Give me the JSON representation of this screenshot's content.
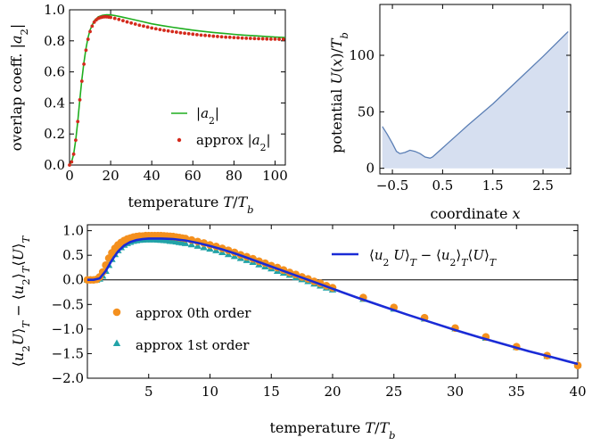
{
  "chart_data": [
    {
      "id": "overlap",
      "type": "line",
      "title": "",
      "xlabel": "temperature T/T_b",
      "ylabel": "overlap coeff. |a_2|",
      "xlim": [
        0,
        105
      ],
      "ylim": [
        0,
        1.0
      ],
      "xticks": [
        0,
        20,
        40,
        60,
        80,
        100
      ],
      "yticks": [
        0.0,
        0.2,
        0.4,
        0.6,
        0.8,
        1.0
      ],
      "legend_position": "lower-right",
      "grid": false,
      "series": [
        {
          "name": "|a_2|",
          "style": "line",
          "color": "#1fae1f",
          "x": [
            0,
            1,
            2,
            3,
            4,
            5,
            6,
            7,
            8,
            9,
            10,
            12,
            14,
            16,
            18,
            20,
            22,
            25,
            30,
            35,
            40,
            45,
            50,
            55,
            60,
            65,
            70,
            75,
            80,
            85,
            90,
            95,
            100,
            105
          ],
          "y": [
            0.0,
            0.02,
            0.07,
            0.16,
            0.28,
            0.42,
            0.55,
            0.66,
            0.75,
            0.82,
            0.87,
            0.93,
            0.955,
            0.965,
            0.968,
            0.967,
            0.963,
            0.955,
            0.94,
            0.925,
            0.91,
            0.898,
            0.888,
            0.878,
            0.869,
            0.861,
            0.854,
            0.848,
            0.842,
            0.837,
            0.833,
            0.829,
            0.825,
            0.822
          ]
        },
        {
          "name": "approx |a_2|",
          "style": "points",
          "color": "#d42a1c",
          "x": [
            0,
            1,
            2,
            3,
            4,
            5,
            6,
            7,
            8,
            9,
            10,
            11,
            12,
            13,
            14,
            15,
            16,
            17,
            18,
            19,
            20,
            22,
            24,
            26,
            28,
            30,
            32,
            34,
            36,
            38,
            40,
            42,
            44,
            46,
            48,
            50,
            52,
            54,
            56,
            58,
            60,
            62,
            64,
            66,
            68,
            70,
            72,
            74,
            76,
            78,
            80,
            82,
            84,
            86,
            88,
            90,
            92,
            94,
            96,
            98,
            100,
            102,
            104
          ],
          "y": [
            0.0,
            0.02,
            0.07,
            0.16,
            0.28,
            0.42,
            0.54,
            0.65,
            0.74,
            0.81,
            0.86,
            0.895,
            0.92,
            0.935,
            0.945,
            0.95,
            0.953,
            0.955,
            0.955,
            0.953,
            0.951,
            0.945,
            0.938,
            0.93,
            0.922,
            0.915,
            0.908,
            0.901,
            0.895,
            0.889,
            0.883,
            0.878,
            0.873,
            0.868,
            0.864,
            0.86,
            0.856,
            0.852,
            0.849,
            0.846,
            0.843,
            0.84,
            0.837,
            0.835,
            0.833,
            0.83,
            0.828,
            0.826,
            0.824,
            0.823,
            0.821,
            0.82,
            0.818,
            0.817,
            0.816,
            0.815,
            0.814,
            0.813,
            0.812,
            0.811,
            0.811,
            0.81,
            0.81
          ]
        }
      ]
    },
    {
      "id": "potential",
      "type": "area",
      "title": "",
      "xlabel": "coordinate x",
      "ylabel": "potential U(x)/T_b",
      "xlim": [
        -0.75,
        3.05
      ],
      "ylim": [
        -5,
        145
      ],
      "xticks": [
        -0.5,
        0.5,
        1.5,
        2.5
      ],
      "xtick_labels": [
        "−0.5",
        "0.5",
        "1.5",
        "2.5"
      ],
      "yticks": [
        0,
        50,
        100
      ],
      "grid": false,
      "series": [
        {
          "name": "",
          "color": "#5b7fb5",
          "fill": "#d6dff0",
          "x": [
            -0.7,
            -0.6,
            -0.5,
            -0.42,
            -0.35,
            -0.25,
            -0.15,
            -0.05,
            0.05,
            0.15,
            0.25,
            0.3,
            0.35,
            0.45,
            0.6,
            0.8,
            1.0,
            1.5,
            2.0,
            2.5,
            3.0
          ],
          "y": [
            37,
            30,
            22,
            15,
            13,
            14,
            16,
            15,
            13,
            10,
            9,
            10,
            12,
            16,
            22,
            30,
            38,
            57,
            78,
            99,
            121
          ]
        }
      ]
    },
    {
      "id": "correlation",
      "type": "line",
      "title": "",
      "xlabel": "temperature T/T_b",
      "ylabel": "⟨u_2 U⟩_T − ⟨u_2⟩_T⟨U⟩_T",
      "xlim": [
        0,
        40
      ],
      "ylim": [
        -2.0,
        1.1
      ],
      "xticks": [
        5,
        10,
        15,
        20,
        25,
        30,
        35,
        40
      ],
      "yticks": [
        1.0,
        0.5,
        0.0,
        -0.5,
        -1.0,
        -1.5,
        -2.0
      ],
      "ytick_labels": [
        "1.0",
        "0.5",
        "0.0",
        "−0.5",
        "−1.0",
        "−1.5",
        "−2.0"
      ],
      "grid": false,
      "legend_position": "top-right and left",
      "series": [
        {
          "name": "⟨u_2 U⟩_T − ⟨u_2⟩_T⟨U⟩_T",
          "style": "line",
          "color": "#1a2bd6",
          "x": [
            0.0,
            0.5,
            1.0,
            1.5,
            2.0,
            2.5,
            3.0,
            3.5,
            4.0,
            4.5,
            5.0,
            5.5,
            6.0,
            6.5,
            7.0,
            8.0,
            9.0,
            10.0,
            11.0,
            12.0,
            13.0,
            14.0,
            15.0,
            16.0,
            17.0,
            18.0,
            19.0,
            20.0,
            22.0,
            24.0,
            26.0,
            28.0,
            30.0,
            32.0,
            34.0,
            36.0,
            38.0,
            40.0
          ],
          "y": [
            0.0,
            0.0,
            0.03,
            0.18,
            0.4,
            0.58,
            0.7,
            0.77,
            0.81,
            0.83,
            0.84,
            0.84,
            0.84,
            0.835,
            0.83,
            0.8,
            0.75,
            0.69,
            0.62,
            0.54,
            0.45,
            0.36,
            0.27,
            0.18,
            0.09,
            0.0,
            -0.09,
            -0.18,
            -0.36,
            -0.53,
            -0.7,
            -0.86,
            -1.02,
            -1.17,
            -1.31,
            -1.45,
            -1.58,
            -1.71
          ]
        },
        {
          "name": "approx 0th order",
          "style": "circles",
          "color": "#f4901e",
          "x": [
            0.0,
            0.25,
            0.5,
            0.75,
            1.0,
            1.25,
            1.5,
            1.75,
            2.0,
            2.25,
            2.5,
            2.75,
            3.0,
            3.25,
            3.5,
            3.75,
            4.0,
            4.25,
            4.5,
            4.75,
            5.0,
            5.25,
            5.5,
            5.75,
            6.0,
            6.25,
            6.5,
            6.75,
            7.0,
            7.25,
            7.5,
            7.75,
            8.0,
            8.5,
            9.0,
            9.5,
            10.0,
            10.5,
            11.0,
            11.5,
            12.0,
            12.5,
            13.0,
            13.5,
            14.0,
            14.5,
            15.0,
            15.5,
            16.0,
            16.5,
            17.0,
            17.5,
            18.0,
            18.5,
            19.0,
            19.5,
            20.0,
            22.5,
            25.0,
            27.5,
            30.0,
            32.5,
            35.0,
            37.5,
            40.0
          ],
          "y": [
            0.0,
            0.0,
            0.0,
            0.01,
            0.06,
            0.16,
            0.3,
            0.44,
            0.55,
            0.64,
            0.71,
            0.76,
            0.8,
            0.83,
            0.85,
            0.87,
            0.88,
            0.89,
            0.89,
            0.9,
            0.9,
            0.9,
            0.9,
            0.9,
            0.9,
            0.895,
            0.89,
            0.885,
            0.88,
            0.87,
            0.86,
            0.85,
            0.84,
            0.81,
            0.78,
            0.75,
            0.71,
            0.68,
            0.64,
            0.6,
            0.56,
            0.51,
            0.47,
            0.43,
            0.38,
            0.34,
            0.29,
            0.25,
            0.2,
            0.15,
            0.11,
            0.06,
            0.02,
            -0.03,
            -0.07,
            -0.12,
            -0.16,
            -0.36,
            -0.56,
            -0.77,
            -0.98,
            -1.16,
            -1.36,
            -1.54,
            -1.74
          ]
        },
        {
          "name": "approx 1st order",
          "style": "triangles",
          "color": "#22a3a8",
          "x": [
            0.0,
            0.25,
            0.5,
            0.75,
            1.0,
            1.25,
            1.5,
            1.75,
            2.0,
            2.25,
            2.5,
            2.75,
            3.0,
            3.25,
            3.5,
            3.75,
            4.0,
            4.25,
            4.5,
            4.75,
            5.0,
            5.25,
            5.5,
            5.75,
            6.0,
            6.25,
            6.5,
            6.75,
            7.0,
            7.25,
            7.5,
            7.75,
            8.0,
            8.5,
            9.0,
            9.5,
            10.0,
            10.5,
            11.0,
            11.5,
            12.0,
            12.5,
            13.0,
            13.5,
            14.0,
            14.5,
            15.0,
            15.5,
            16.0,
            16.5,
            17.0,
            17.5,
            18.0,
            18.5,
            19.0,
            19.5,
            20.0,
            22.5,
            25.0,
            27.5,
            30.0,
            32.5,
            35.0,
            37.5,
            40.0
          ],
          "y": [
            0.0,
            0.0,
            0.0,
            0.0,
            0.02,
            0.08,
            0.18,
            0.3,
            0.42,
            0.52,
            0.6,
            0.66,
            0.71,
            0.745,
            0.77,
            0.79,
            0.8,
            0.81,
            0.815,
            0.82,
            0.82,
            0.82,
            0.82,
            0.815,
            0.81,
            0.805,
            0.8,
            0.79,
            0.785,
            0.775,
            0.765,
            0.755,
            0.745,
            0.72,
            0.69,
            0.66,
            0.63,
            0.6,
            0.56,
            0.52,
            0.48,
            0.44,
            0.4,
            0.36,
            0.31,
            0.27,
            0.23,
            0.18,
            0.14,
            0.1,
            0.05,
            0.01,
            -0.03,
            -0.08,
            -0.12,
            -0.16,
            -0.2,
            -0.39,
            -0.59,
            -0.79,
            -0.99,
            -1.18,
            -1.37,
            -1.55,
            -1.73
          ]
        }
      ]
    }
  ]
}
